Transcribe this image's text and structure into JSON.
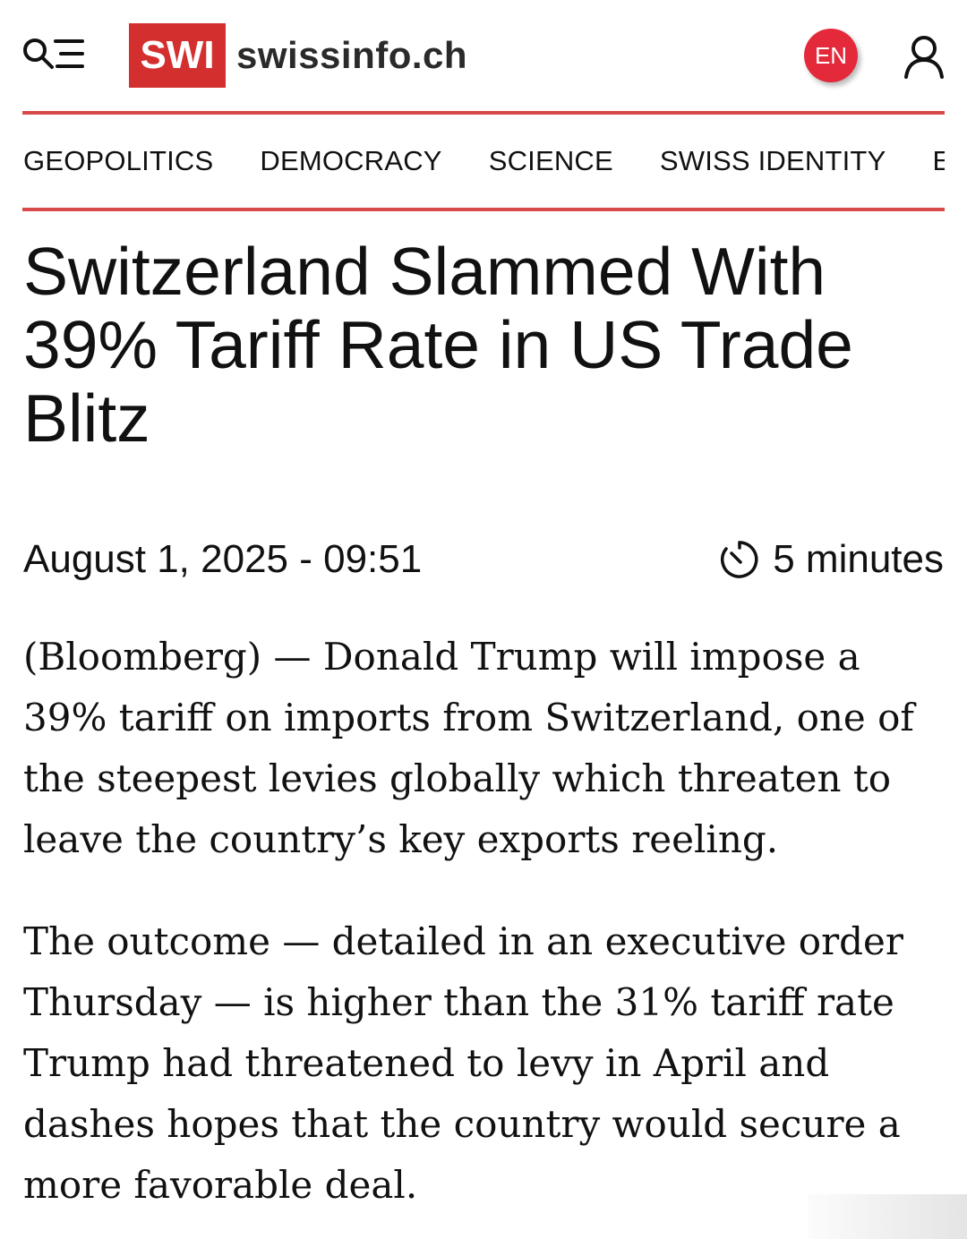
{
  "header": {
    "logo_badge": "SWI",
    "logo_domain": "swissinfo.ch",
    "language": "EN",
    "icons": {
      "menu": "search-menu-icon",
      "user": "user-icon"
    },
    "accent_color": "#d42f2f"
  },
  "nav": {
    "items": [
      {
        "label": "GEOPOLITICS"
      },
      {
        "label": "DEMOCRACY"
      },
      {
        "label": "SCIENCE"
      },
      {
        "label": "SWISS IDENTITY"
      },
      {
        "label": "E"
      }
    ]
  },
  "article": {
    "title": "Switzerland Slammed With 39% Tariff Rate in US Trade Blitz",
    "date": "August 1, 2025 - 09:51",
    "reading_time": "5 minutes",
    "paragraphs": [
      "(Bloomberg) — Donald Trump will impose a 39% tariff on imports from Switzerland, one of the steepest levies globally which threaten to leave the country’s key exports reeling.",
      "The outcome — detailed in an executive order Thursday — is higher than the 31% tariff rate Trump had threatened to levy in April and dashes hopes that the country would secure a more favorable deal."
    ]
  }
}
